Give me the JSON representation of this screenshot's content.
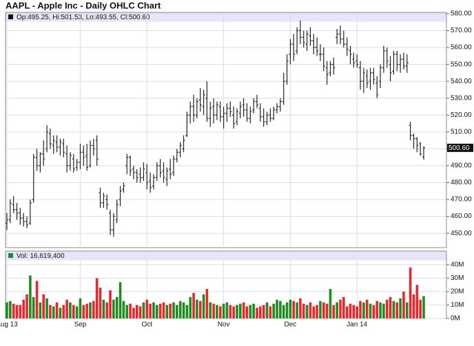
{
  "title": "AAPL - Apple Inc - Daily OHLC Chart",
  "chart_data": [
    {
      "type": "ohlc",
      "legend_text": "Op:495.25, Hi:501.53, Lo:493.55, Cl:500.60",
      "color": "#222222",
      "last_label": "500.60",
      "open": [
        456,
        458,
        467,
        464,
        462,
        459,
        457,
        456,
        470,
        495,
        490,
        497,
        500,
        509,
        502,
        504,
        501,
        503,
        497,
        490,
        494,
        489,
        492,
        498,
        496,
        490,
        502,
        505,
        474,
        468,
        470,
        462,
        452,
        458,
        470,
        476,
        490,
        495,
        488,
        486,
        485,
        483,
        486,
        481,
        478,
        483,
        490,
        487,
        482,
        488,
        486,
        494,
        498,
        500,
        508,
        520,
        525,
        520,
        529,
        525,
        530,
        518,
        525,
        520,
        525,
        519,
        521,
        524,
        520,
        516,
        521,
        526,
        523,
        518,
        523,
        528,
        524,
        519,
        516,
        520,
        518,
        523,
        525,
        528,
        540,
        556,
        562,
        558,
        570,
        566,
        562,
        567,
        564,
        560,
        556,
        556,
        548,
        545,
        550,
        566,
        568,
        565,
        562,
        558,
        553,
        552,
        548,
        540,
        543,
        540,
        545,
        539,
        540,
        548,
        558,
        550,
        546,
        556,
        550,
        553,
        549,
        514,
        508,
        506,
        503,
        495.25
      ],
      "high": [
        462,
        470,
        472,
        468,
        465,
        462,
        460,
        470,
        497,
        500,
        498,
        505,
        514,
        512,
        508,
        508,
        506,
        506,
        502,
        498,
        497,
        494,
        503,
        502,
        503,
        505,
        506,
        508,
        477,
        474,
        473,
        464,
        462,
        470,
        478,
        480,
        497,
        496,
        490,
        488,
        489,
        492,
        491,
        486,
        485,
        492,
        494,
        492,
        489,
        494,
        496,
        500,
        504,
        508,
        522,
        528,
        532,
        530,
        536,
        535,
        540,
        528,
        530,
        528,
        528,
        525,
        527,
        528,
        525,
        524,
        528,
        530,
        527,
        525,
        530,
        532,
        527,
        524,
        522,
        524,
        525,
        527,
        530,
        545,
        556,
        565,
        568,
        572,
        576,
        570,
        570,
        572,
        568,
        566,
        562,
        560,
        552,
        552,
        554,
        571,
        573,
        570,
        566,
        561,
        557,
        556,
        552,
        548,
        547,
        548,
        548,
        543,
        550,
        561,
        560,
        555,
        558,
        558,
        556,
        557,
        556,
        516,
        509,
        507,
        504,
        501.53
      ],
      "low": [
        452,
        456,
        462,
        458,
        455,
        454,
        453,
        455,
        468,
        487,
        486,
        490,
        498,
        500,
        497,
        498,
        496,
        495,
        486,
        487,
        486,
        487,
        488,
        490,
        487,
        489,
        496,
        490,
        465,
        465,
        464,
        449,
        448,
        456,
        466,
        474,
        485,
        484,
        482,
        480,
        480,
        481,
        476,
        474,
        476,
        481,
        483,
        480,
        478,
        482,
        484,
        492,
        495,
        498,
        507,
        515,
        516,
        518,
        522,
        520,
        516,
        513,
        515,
        517,
        516,
        512,
        516,
        519,
        512,
        514,
        518,
        519,
        516,
        515,
        521,
        524,
        516,
        513,
        514,
        516,
        517,
        521,
        522,
        526,
        538,
        550,
        552,
        556,
        562,
        560,
        558,
        561,
        556,
        555,
        552,
        546,
        538,
        543,
        544,
        562,
        562,
        560,
        555,
        550,
        548,
        548,
        535,
        533,
        536,
        535,
        538,
        530,
        536,
        545,
        548,
        540,
        544,
        546,
        545,
        547,
        545,
        505,
        500,
        498,
        496,
        493.55
      ],
      "close": [
        458,
        468,
        464,
        462,
        459,
        457,
        455,
        468,
        495,
        490,
        497,
        494,
        510,
        503,
        505,
        501,
        504,
        498,
        490,
        496,
        488,
        492,
        498,
        495,
        489,
        502,
        500,
        494,
        468,
        472,
        467,
        452,
        460,
        467,
        475,
        478,
        495,
        487,
        486,
        483,
        483,
        488,
        480,
        477,
        483,
        490,
        486,
        483,
        487,
        485,
        494,
        498,
        502,
        505,
        520,
        525,
        520,
        528,
        526,
        532,
        518,
        524,
        520,
        526,
        519,
        521,
        524,
        522,
        515,
        522,
        525,
        523,
        518,
        522,
        528,
        526,
        519,
        516,
        520,
        518,
        523,
        525,
        528,
        540,
        552,
        562,
        556,
        570,
        566,
        563,
        568,
        564,
        560,
        558,
        556,
        549,
        544,
        550,
        548,
        568,
        565,
        562,
        559,
        556,
        551,
        550,
        540,
        545,
        539,
        545,
        541,
        532,
        548,
        558,
        552,
        545,
        556,
        550,
        553,
        549,
        551,
        508,
        506,
        502,
        497,
        500.6
      ],
      "ylim": [
        441.5,
        580.8
      ],
      "yticks": [
        {
          "value": 450,
          "label": "450.00"
        },
        {
          "value": 460,
          "label": "460.00"
        },
        {
          "value": 470,
          "label": "470.00"
        },
        {
          "value": 480,
          "label": "480.00"
        },
        {
          "value": 490,
          "label": "490.00"
        },
        {
          "value": 500,
          "label": "500.00"
        },
        {
          "value": 510,
          "label": "510.00"
        },
        {
          "value": 520,
          "label": "520.00"
        },
        {
          "value": 530,
          "label": "530.00"
        },
        {
          "value": 540,
          "label": "540.00"
        },
        {
          "value": 550,
          "label": "550.00"
        },
        {
          "value": 560,
          "label": "560.00"
        },
        {
          "value": 570,
          "label": "570.00"
        },
        {
          "value": 580,
          "label": "580.00"
        }
      ],
      "grid": true
    },
    {
      "type": "bar",
      "legend_text": "Vol: 16,619,400",
      "up_color": "#1e8c1e",
      "down_color": "#e8262d",
      "categories": [
        "Aug 13",
        null,
        null,
        null,
        null,
        null,
        null,
        null,
        null,
        null,
        null,
        null,
        null,
        null,
        null,
        null,
        null,
        null,
        null,
        null,
        null,
        null,
        "Sep",
        null,
        null,
        null,
        null,
        null,
        null,
        null,
        null,
        null,
        null,
        null,
        null,
        null,
        null,
        null,
        null,
        null,
        null,
        null,
        "Oct",
        null,
        null,
        null,
        null,
        null,
        null,
        null,
        null,
        null,
        null,
        null,
        null,
        null,
        null,
        null,
        null,
        null,
        null,
        null,
        null,
        null,
        null,
        "Nov",
        null,
        null,
        null,
        null,
        null,
        null,
        null,
        null,
        null,
        null,
        null,
        null,
        null,
        null,
        null,
        null,
        null,
        null,
        null,
        "Dec",
        null,
        null,
        null,
        null,
        null,
        null,
        null,
        null,
        null,
        null,
        null,
        null,
        null,
        null,
        null,
        null,
        null,
        null,
        null,
        "Jan 14",
        null,
        null,
        null,
        null,
        null,
        null,
        null,
        null,
        null,
        null,
        null,
        null,
        null,
        null,
        null,
        null,
        null,
        null,
        null,
        null
      ],
      "values": [
        12,
        13,
        11,
        10,
        10,
        14,
        18,
        32,
        16,
        28,
        12,
        18,
        15,
        10,
        9,
        12,
        8,
        10,
        14,
        12,
        10,
        9,
        15,
        10,
        11,
        12,
        13,
        30,
        23,
        14,
        12,
        21,
        14,
        16,
        27,
        13,
        10,
        11,
        8,
        10,
        9,
        12,
        14,
        11,
        12,
        10,
        11,
        12,
        10,
        11,
        12,
        10,
        13,
        12,
        10,
        16,
        19,
        14,
        13,
        18,
        22,
        12,
        11,
        10,
        9,
        11,
        12,
        10,
        9,
        10,
        11,
        12,
        9,
        10,
        11,
        8,
        9,
        10,
        12,
        9,
        11,
        14,
        13,
        10,
        12,
        14,
        13,
        12,
        15,
        11,
        10,
        12,
        9,
        10,
        13,
        12,
        11,
        22,
        10,
        12,
        14,
        16,
        9,
        11,
        10,
        9,
        13,
        12,
        14,
        11,
        10,
        13,
        12,
        11,
        14,
        16,
        13,
        12,
        15,
        20,
        12,
        38,
        18,
        25,
        14,
        16.6194
      ],
      "ylim": [
        0,
        42.5
      ],
      "yticks": [
        {
          "value": 0,
          "label": "0M"
        },
        {
          "value": 10,
          "label": "10M"
        },
        {
          "value": 20,
          "label": "20M"
        },
        {
          "value": 30,
          "label": "30M"
        },
        {
          "value": 40,
          "label": "40M"
        }
      ],
      "grid": true
    }
  ]
}
